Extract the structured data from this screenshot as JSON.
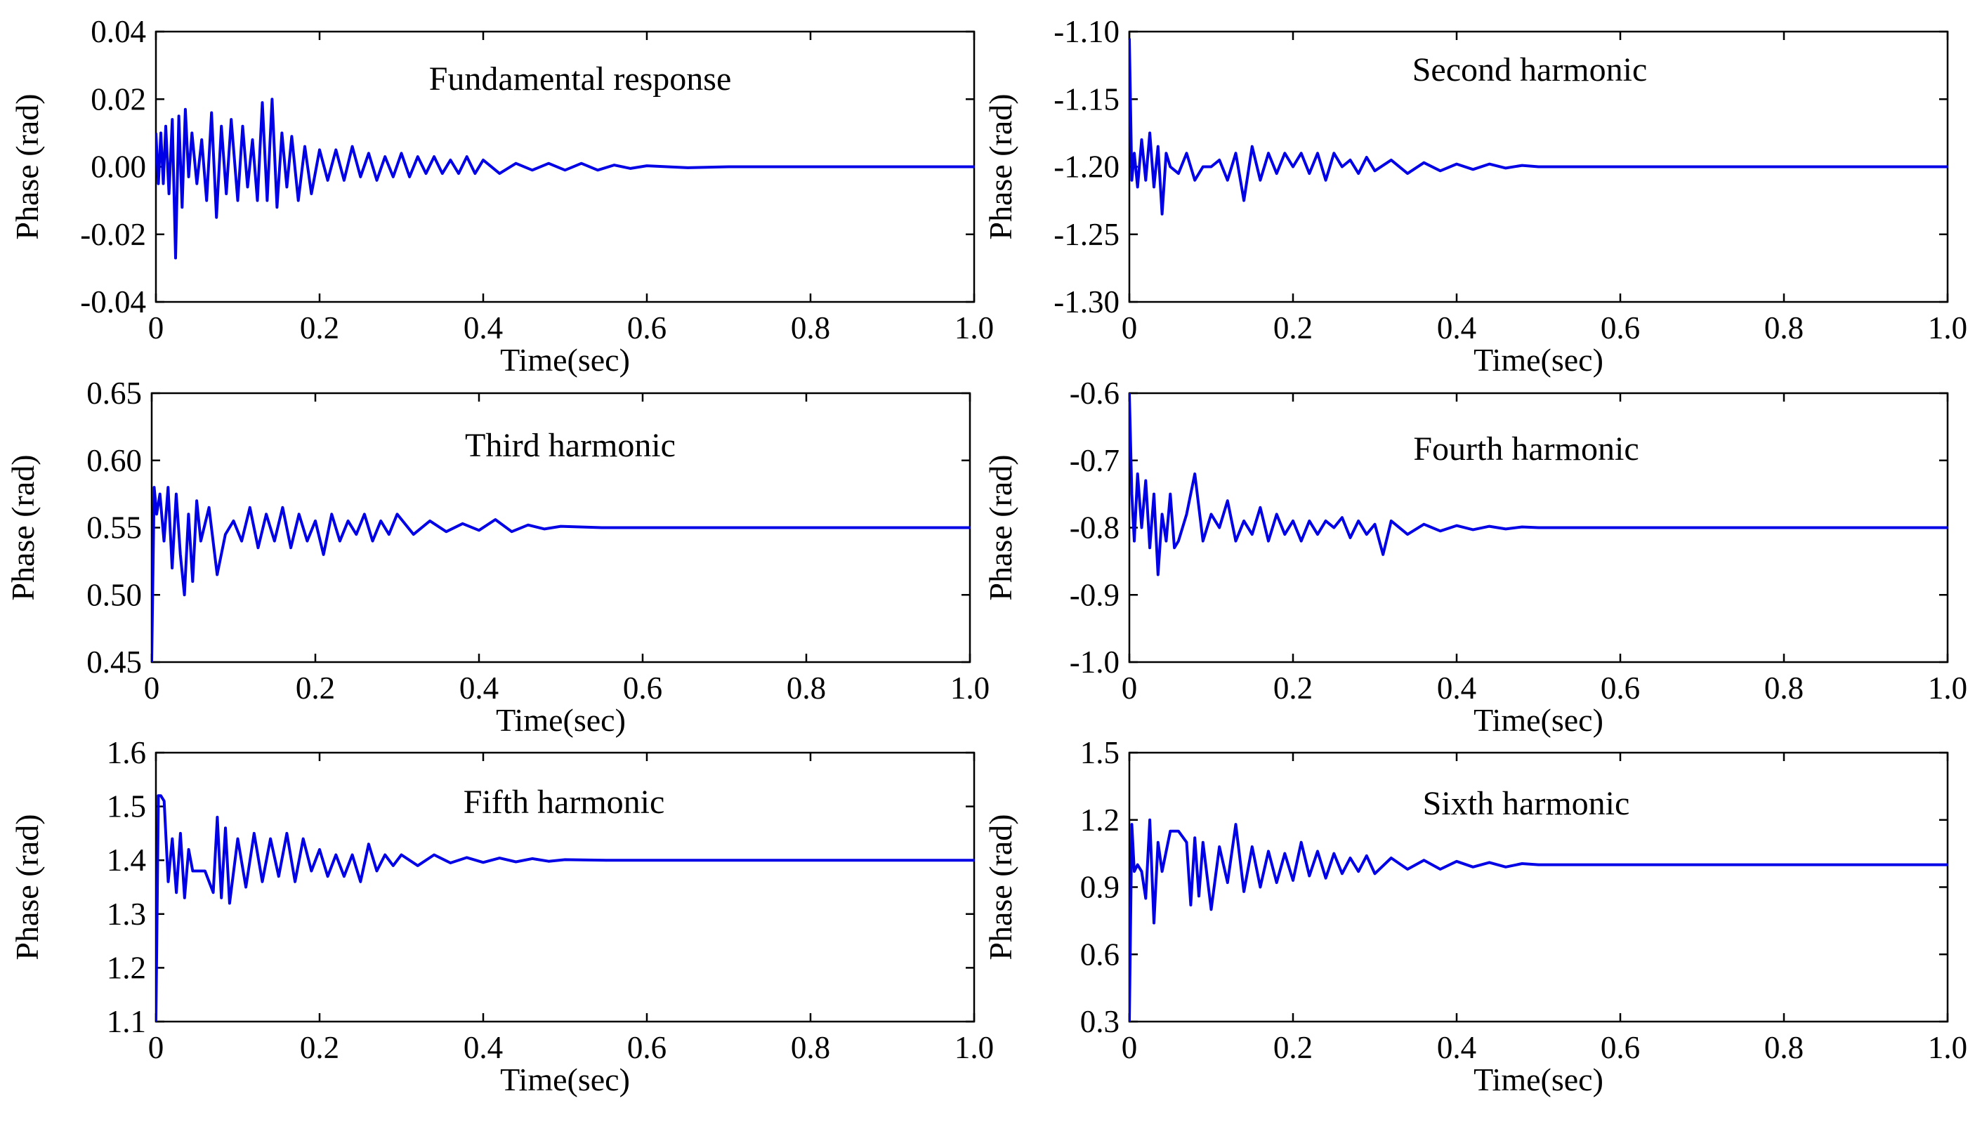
{
  "figure": {
    "line_color": "#0000e6"
  },
  "chart_data": [
    {
      "type": "line",
      "title": "Fundamental response",
      "xlabel": "Time(sec)",
      "ylabel": "Phase (rad)",
      "xlim": [
        0,
        1.0
      ],
      "ylim": [
        -0.04,
        0.04
      ],
      "xticks": [
        "0",
        "0.2",
        "0.4",
        "0.6",
        "0.8",
        "1.0"
      ],
      "yticks": [
        "0.04",
        "0.02",
        "0.00",
        "-0.02",
        "-0.04"
      ],
      "series": [
        {
          "name": "Fundamental response",
          "steady_value": 0.0,
          "x": [
            0,
            0.003,
            0.006,
            0.009,
            0.012,
            0.016,
            0.02,
            0.024,
            0.028,
            0.032,
            0.036,
            0.04,
            0.044,
            0.05,
            0.056,
            0.062,
            0.068,
            0.074,
            0.08,
            0.086,
            0.092,
            0.1,
            0.106,
            0.112,
            0.118,
            0.124,
            0.13,
            0.136,
            0.142,
            0.148,
            0.154,
            0.16,
            0.166,
            0.174,
            0.182,
            0.19,
            0.2,
            0.21,
            0.22,
            0.23,
            0.24,
            0.25,
            0.26,
            0.27,
            0.28,
            0.29,
            0.3,
            0.31,
            0.32,
            0.33,
            0.34,
            0.35,
            0.36,
            0.37,
            0.38,
            0.39,
            0.4,
            0.42,
            0.44,
            0.46,
            0.48,
            0.5,
            0.52,
            0.54,
            0.56,
            0.58,
            0.6,
            0.65,
            0.7,
            0.8,
            0.9,
            1.0
          ],
          "y": [
            0.01,
            -0.005,
            0.01,
            -0.005,
            0.012,
            -0.008,
            0.014,
            -0.027,
            0.015,
            -0.012,
            0.017,
            -0.003,
            0.01,
            -0.005,
            0.008,
            -0.01,
            0.016,
            -0.015,
            0.012,
            -0.008,
            0.014,
            -0.01,
            0.012,
            -0.006,
            0.008,
            -0.01,
            0.019,
            -0.01,
            0.02,
            -0.012,
            0.01,
            -0.006,
            0.009,
            -0.01,
            0.006,
            -0.008,
            0.005,
            -0.004,
            0.005,
            -0.004,
            0.006,
            -0.003,
            0.004,
            -0.004,
            0.003,
            -0.003,
            0.004,
            -0.003,
            0.003,
            -0.002,
            0.003,
            -0.002,
            0.002,
            -0.002,
            0.003,
            -0.002,
            0.002,
            -0.002,
            0.001,
            -0.001,
            0.001,
            -0.001,
            0.001,
            -0.001,
            0.0005,
            -0.0005,
            0.0003,
            -0.0003,
            0.0,
            0.0,
            0.0,
            0.0
          ]
        }
      ]
    },
    {
      "type": "line",
      "title": "Second harmonic",
      "xlabel": "Time(sec)",
      "ylabel": "Phase (rad)",
      "xlim": [
        0,
        1.0
      ],
      "ylim": [
        -1.3,
        -1.1
      ],
      "xticks": [
        "0",
        "0.2",
        "0.4",
        "0.6",
        "0.8",
        "1.0"
      ],
      "yticks": [
        "-1.10",
        "-1.15",
        "-1.20",
        "-1.25",
        "-1.30"
      ],
      "series": [
        {
          "name": "Second harmonic",
          "steady_value": -1.2,
          "x": [
            0,
            0.003,
            0.006,
            0.01,
            0.015,
            0.02,
            0.025,
            0.03,
            0.035,
            0.04,
            0.045,
            0.05,
            0.06,
            0.07,
            0.08,
            0.09,
            0.1,
            0.11,
            0.12,
            0.13,
            0.14,
            0.15,
            0.16,
            0.17,
            0.18,
            0.19,
            0.2,
            0.21,
            0.22,
            0.23,
            0.24,
            0.25,
            0.26,
            0.27,
            0.28,
            0.29,
            0.3,
            0.32,
            0.34,
            0.36,
            0.38,
            0.4,
            0.42,
            0.44,
            0.46,
            0.48,
            0.5,
            0.55,
            0.6,
            0.7,
            0.8,
            0.9,
            1.0
          ],
          "y": [
            -1.105,
            -1.21,
            -1.19,
            -1.215,
            -1.18,
            -1.21,
            -1.175,
            -1.215,
            -1.185,
            -1.235,
            -1.19,
            -1.2,
            -1.205,
            -1.19,
            -1.21,
            -1.2,
            -1.2,
            -1.195,
            -1.21,
            -1.19,
            -1.225,
            -1.185,
            -1.21,
            -1.19,
            -1.205,
            -1.19,
            -1.2,
            -1.19,
            -1.205,
            -1.19,
            -1.21,
            -1.19,
            -1.2,
            -1.195,
            -1.205,
            -1.193,
            -1.203,
            -1.195,
            -1.205,
            -1.197,
            -1.203,
            -1.198,
            -1.202,
            -1.198,
            -1.201,
            -1.199,
            -1.2,
            -1.2,
            -1.2,
            -1.2,
            -1.2,
            -1.2,
            -1.2
          ]
        }
      ]
    },
    {
      "type": "line",
      "title": "Third harmonic",
      "xlabel": "Time(sec)",
      "ylabel": "Phase (rad)",
      "xlim": [
        0,
        1.0
      ],
      "ylim": [
        0.45,
        0.65
      ],
      "xticks": [
        "0",
        "0.2",
        "0.4",
        "0.6",
        "0.8",
        "1.0"
      ],
      "yticks": [
        "0.65",
        "0.60",
        "0.55",
        "0.50",
        "0.45"
      ],
      "series": [
        {
          "name": "Third harmonic",
          "steady_value": 0.55,
          "x": [
            0,
            0.003,
            0.006,
            0.01,
            0.015,
            0.02,
            0.025,
            0.03,
            0.035,
            0.04,
            0.045,
            0.05,
            0.055,
            0.06,
            0.07,
            0.08,
            0.09,
            0.1,
            0.11,
            0.12,
            0.13,
            0.14,
            0.15,
            0.16,
            0.17,
            0.18,
            0.19,
            0.2,
            0.21,
            0.22,
            0.23,
            0.24,
            0.25,
            0.26,
            0.27,
            0.28,
            0.29,
            0.3,
            0.32,
            0.34,
            0.36,
            0.38,
            0.4,
            0.42,
            0.44,
            0.46,
            0.48,
            0.5,
            0.55,
            0.6,
            0.7,
            0.8,
            0.9,
            1.0
          ],
          "y": [
            0.45,
            0.58,
            0.56,
            0.575,
            0.54,
            0.58,
            0.52,
            0.575,
            0.53,
            0.5,
            0.56,
            0.51,
            0.57,
            0.54,
            0.565,
            0.515,
            0.545,
            0.555,
            0.54,
            0.565,
            0.535,
            0.56,
            0.54,
            0.565,
            0.535,
            0.56,
            0.54,
            0.555,
            0.53,
            0.56,
            0.54,
            0.555,
            0.545,
            0.56,
            0.54,
            0.555,
            0.545,
            0.56,
            0.545,
            0.555,
            0.547,
            0.553,
            0.548,
            0.556,
            0.547,
            0.552,
            0.549,
            0.551,
            0.55,
            0.55,
            0.55,
            0.55,
            0.55,
            0.55
          ]
        }
      ]
    },
    {
      "type": "line",
      "title": "Fourth harmonic",
      "xlabel": "Time(sec)",
      "ylabel": "Phase (rad)",
      "xlim": [
        0,
        1.0
      ],
      "ylim": [
        -1.0,
        -0.6
      ],
      "xticks": [
        "0",
        "0.2",
        "0.4",
        "0.6",
        "0.8",
        "1.0"
      ],
      "yticks": [
        "-0.6",
        "-0.7",
        "-0.8",
        "-0.9",
        "-1.0"
      ],
      "series": [
        {
          "name": "Fourth harmonic",
          "steady_value": -0.8,
          "x": [
            0,
            0.003,
            0.006,
            0.01,
            0.015,
            0.02,
            0.025,
            0.03,
            0.035,
            0.04,
            0.045,
            0.05,
            0.055,
            0.06,
            0.07,
            0.08,
            0.09,
            0.1,
            0.11,
            0.12,
            0.13,
            0.14,
            0.15,
            0.16,
            0.17,
            0.18,
            0.19,
            0.2,
            0.21,
            0.22,
            0.23,
            0.24,
            0.25,
            0.26,
            0.27,
            0.28,
            0.29,
            0.3,
            0.31,
            0.32,
            0.34,
            0.36,
            0.38,
            0.4,
            0.42,
            0.44,
            0.46,
            0.48,
            0.5,
            0.55,
            0.6,
            0.7,
            0.8,
            0.9,
            1.0
          ],
          "y": [
            -0.6,
            -0.75,
            -0.82,
            -0.72,
            -0.8,
            -0.73,
            -0.83,
            -0.75,
            -0.87,
            -0.78,
            -0.82,
            -0.75,
            -0.83,
            -0.82,
            -0.78,
            -0.72,
            -0.82,
            -0.78,
            -0.8,
            -0.76,
            -0.82,
            -0.79,
            -0.81,
            -0.77,
            -0.82,
            -0.78,
            -0.81,
            -0.79,
            -0.82,
            -0.79,
            -0.81,
            -0.79,
            -0.8,
            -0.785,
            -0.815,
            -0.79,
            -0.81,
            -0.795,
            -0.84,
            -0.79,
            -0.81,
            -0.795,
            -0.805,
            -0.797,
            -0.803,
            -0.798,
            -0.802,
            -0.799,
            -0.8,
            -0.8,
            -0.8,
            -0.8,
            -0.8,
            -0.8,
            -0.8
          ]
        }
      ]
    },
    {
      "type": "line",
      "title": "Fifth harmonic",
      "xlabel": "Time(sec)",
      "ylabel": "Phase (rad)",
      "xlim": [
        0,
        1.0
      ],
      "ylim": [
        1.1,
        1.6
      ],
      "xticks": [
        "0",
        "0.2",
        "0.4",
        "0.6",
        "0.8",
        "1.0"
      ],
      "yticks": [
        "1.6",
        "1.5",
        "1.4",
        "1.3",
        "1.2",
        "1.1"
      ],
      "series": [
        {
          "name": "Fifth harmonic",
          "steady_value": 1.4,
          "x": [
            0,
            0.003,
            0.006,
            0.01,
            0.015,
            0.02,
            0.025,
            0.03,
            0.035,
            0.04,
            0.045,
            0.05,
            0.06,
            0.07,
            0.075,
            0.08,
            0.085,
            0.09,
            0.1,
            0.11,
            0.12,
            0.13,
            0.14,
            0.15,
            0.16,
            0.17,
            0.18,
            0.19,
            0.2,
            0.21,
            0.22,
            0.23,
            0.24,
            0.25,
            0.26,
            0.27,
            0.28,
            0.29,
            0.3,
            0.32,
            0.34,
            0.36,
            0.38,
            0.4,
            0.42,
            0.44,
            0.46,
            0.48,
            0.5,
            0.55,
            0.6,
            0.7,
            0.8,
            0.9,
            1.0
          ],
          "y": [
            1.1,
            1.52,
            1.52,
            1.51,
            1.36,
            1.44,
            1.34,
            1.45,
            1.33,
            1.42,
            1.38,
            1.38,
            1.38,
            1.34,
            1.48,
            1.33,
            1.46,
            1.32,
            1.44,
            1.35,
            1.45,
            1.36,
            1.44,
            1.37,
            1.45,
            1.36,
            1.44,
            1.38,
            1.42,
            1.37,
            1.41,
            1.37,
            1.41,
            1.36,
            1.43,
            1.38,
            1.41,
            1.39,
            1.41,
            1.39,
            1.41,
            1.395,
            1.405,
            1.396,
            1.404,
            1.397,
            1.403,
            1.398,
            1.401,
            1.4,
            1.4,
            1.4,
            1.4,
            1.4,
            1.4
          ]
        }
      ]
    },
    {
      "type": "line",
      "title": "Sixth harmonic",
      "xlabel": "Time(sec)",
      "ylabel": "Phase (rad)",
      "xlim": [
        0,
        1.0
      ],
      "ylim": [
        0.3,
        1.5
      ],
      "xticks": [
        "0",
        "0.2",
        "0.4",
        "0.6",
        "0.8",
        "1.0"
      ],
      "yticks": [
        "1.5",
        "1.2",
        "0.9",
        "0.6",
        "0.3"
      ],
      "series": [
        {
          "name": "Sixth harmonic",
          "steady_value": 1.0,
          "x": [
            0,
            0.003,
            0.006,
            0.01,
            0.015,
            0.02,
            0.025,
            0.03,
            0.035,
            0.04,
            0.05,
            0.06,
            0.07,
            0.075,
            0.08,
            0.085,
            0.09,
            0.1,
            0.11,
            0.12,
            0.13,
            0.14,
            0.15,
            0.16,
            0.17,
            0.18,
            0.19,
            0.2,
            0.21,
            0.22,
            0.23,
            0.24,
            0.25,
            0.26,
            0.27,
            0.28,
            0.29,
            0.3,
            0.32,
            0.34,
            0.36,
            0.38,
            0.4,
            0.42,
            0.44,
            0.46,
            0.48,
            0.5,
            0.55,
            0.6,
            0.7,
            0.8,
            0.9,
            1.0
          ],
          "y": [
            0.3,
            1.18,
            0.97,
            1.0,
            0.97,
            0.85,
            1.2,
            0.74,
            1.1,
            0.97,
            1.15,
            1.15,
            1.1,
            0.82,
            1.12,
            0.86,
            1.1,
            0.8,
            1.08,
            0.92,
            1.18,
            0.88,
            1.08,
            0.9,
            1.06,
            0.92,
            1.05,
            0.93,
            1.1,
            0.95,
            1.06,
            0.94,
            1.05,
            0.96,
            1.03,
            0.97,
            1.04,
            0.96,
            1.03,
            0.98,
            1.02,
            0.98,
            1.015,
            0.99,
            1.01,
            0.99,
            1.005,
            1.0,
            1.0,
            1.0,
            1.0,
            1.0,
            1.0,
            1.0
          ]
        }
      ]
    }
  ]
}
